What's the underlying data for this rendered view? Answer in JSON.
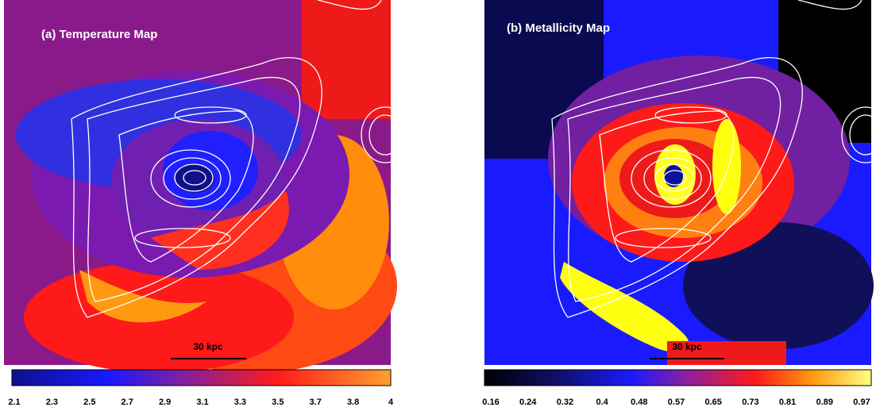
{
  "panels": [
    {
      "title": "(a) Temperature Map",
      "scale_bar": "30 kpc",
      "colorbar_ticks": [
        "2.1",
        "2.3",
        "2.5",
        "2.7",
        "2.9",
        "3.1",
        "3.3",
        "3.5",
        "3.7",
        "3.8",
        "4"
      ]
    },
    {
      "title": "(b) Metallicity Map",
      "scale_bar": "30 kpc",
      "colorbar_ticks": [
        "0.16",
        "0.24",
        "0.32",
        "0.4",
        "0.48",
        "0.57",
        "0.65",
        "0.73",
        "0.81",
        "0.89",
        "0.97"
      ]
    }
  ]
}
